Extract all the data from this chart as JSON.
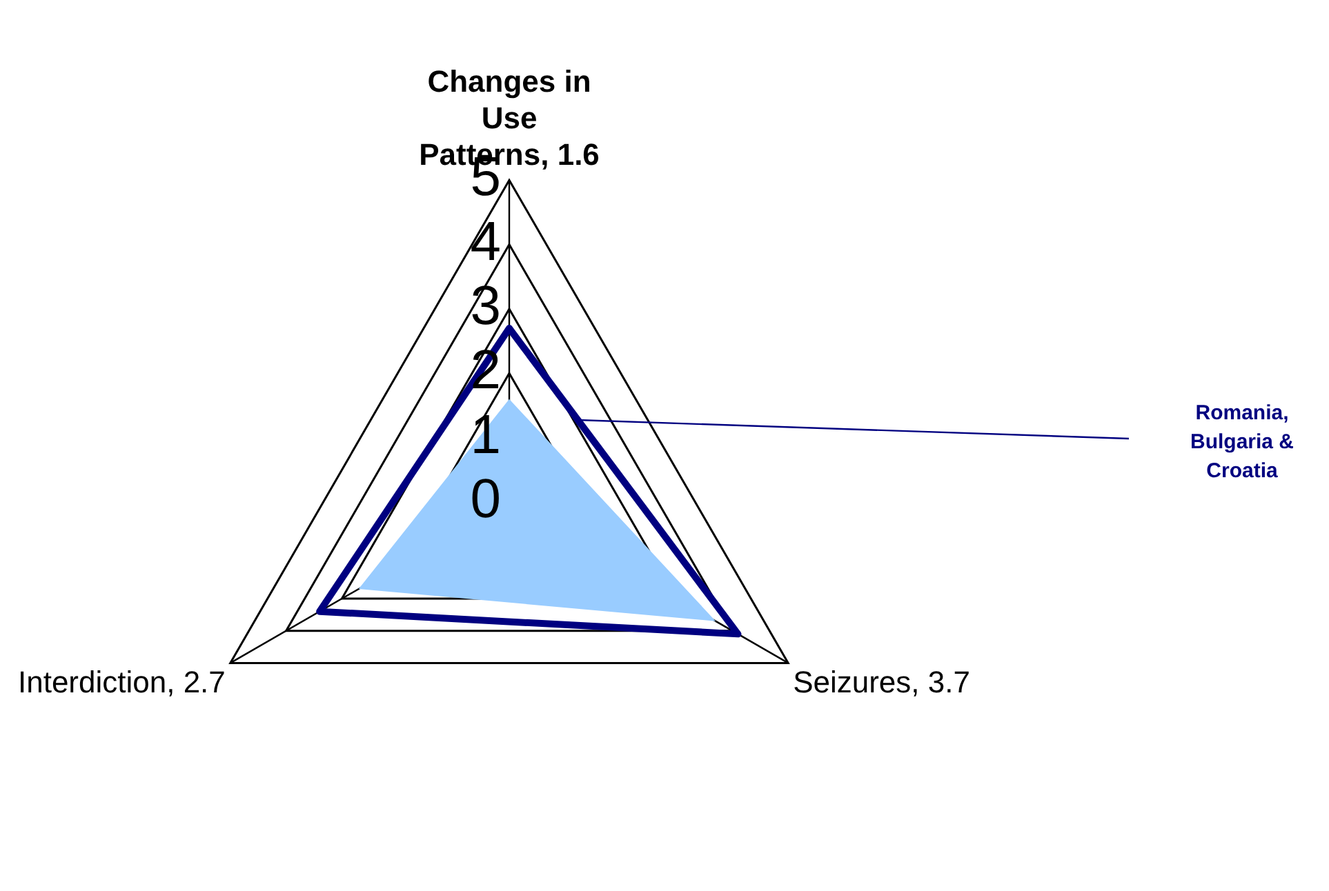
{
  "chart_data": {
    "type": "radar",
    "categories": [
      "Changes in Use Patterns, 1.6",
      "Seizures, 3.7",
      "Interdiction, 2.7"
    ],
    "series": [
      {
        "color": "#99ccff",
        "values": [
          1.6,
          3.7,
          2.7
        ]
      },
      {
        "name": "Romania, Bulgaria & Croatia",
        "color": "#000080",
        "values": [
          2.7,
          4.1,
          3.4
        ]
      }
    ],
    "ylim": [
      0,
      5
    ],
    "yticks": [
      0,
      1,
      2,
      3,
      4,
      5
    ],
    "grid": true,
    "marker": "none"
  }
}
